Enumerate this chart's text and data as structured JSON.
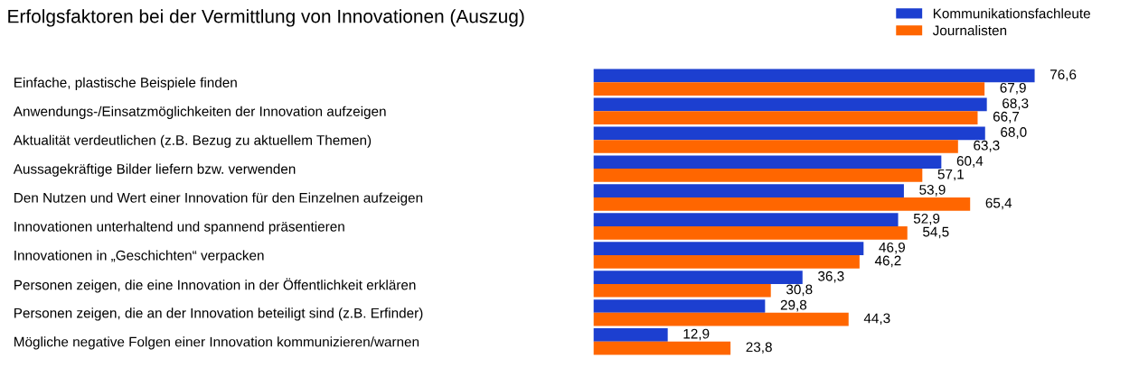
{
  "chart_data": {
    "type": "bar",
    "orientation": "horizontal",
    "title": "Erfolgsfaktoren bei der Vermittlung von Innovationen (Auszug)",
    "categories": [
      "Einfache, plastische Beispiele finden",
      "Anwendungs-/Einsatzmöglichkeiten der Innovation aufzeigen",
      "Aktualität verdeutlichen (z.B. Bezug zu aktuellem Themen)",
      "Aussagekräftige Bilder liefern bzw. verwenden",
      "Den Nutzen und Wert einer Innovation für den Einzelnen aufzeigen",
      "Innovationen unterhaltend und spannend präsentieren",
      "Innovationen in „Geschichten“ verpacken",
      "Personen zeigen, die eine Innovation in der Öffentlichkeit erklären",
      "Personen zeigen, die an der Innovation beteiligt sind (z.B. Erfinder)",
      "Mögliche negative Folgen einer Innovation kommunizieren/warnen"
    ],
    "series": [
      {
        "name": "Kommunikationsfachleute",
        "color": "#1c3fd0",
        "values": [
          76.6,
          68.3,
          68.0,
          60.4,
          53.9,
          52.9,
          46.9,
          36.3,
          29.8,
          12.9
        ],
        "value_labels": [
          "76,6",
          "68,3",
          "68,0",
          "60,4",
          "53,9",
          "52,9",
          "46,9",
          "36,3",
          "29,8",
          "12,9"
        ]
      },
      {
        "name": "Journalisten",
        "color": "#ff6600",
        "values": [
          67.9,
          66.7,
          63.3,
          57.1,
          65.4,
          54.5,
          46.2,
          30.8,
          44.3,
          23.8
        ],
        "value_labels": [
          "67,9",
          "66,7",
          "63,3",
          "57,1",
          "65,4",
          "54,5",
          "46,2",
          "30,8",
          "44,3",
          "23,8"
        ]
      }
    ],
    "tick_labels": "y",
    "grid": false,
    "legend": "top right"
  }
}
